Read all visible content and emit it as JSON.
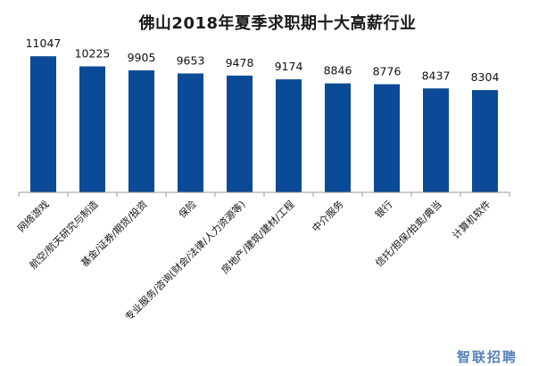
{
  "watermark": "智联招聘",
  "chart_data": {
    "type": "bar",
    "title": "佛山2018年夏季求职期十大高薪行业",
    "xlabel": "",
    "ylabel": "",
    "ylim": [
      0,
      12000
    ],
    "grid": false,
    "legend": "none",
    "bar_color": "#0b4a96",
    "categories": [
      "网络游戏",
      "航空/航天研究与制造",
      "基金/证券/期货/投资",
      "保险",
      "专业服务/咨询(财会/法律/人力资源等)",
      "房地产/建筑/建材/工程",
      "中介服务",
      "银行",
      "信托/担保/拍卖/典当",
      "计算机软件"
    ],
    "values": [
      11047,
      10225,
      9905,
      9653,
      9478,
      9174,
      8846,
      8776,
      8437,
      8304
    ]
  }
}
